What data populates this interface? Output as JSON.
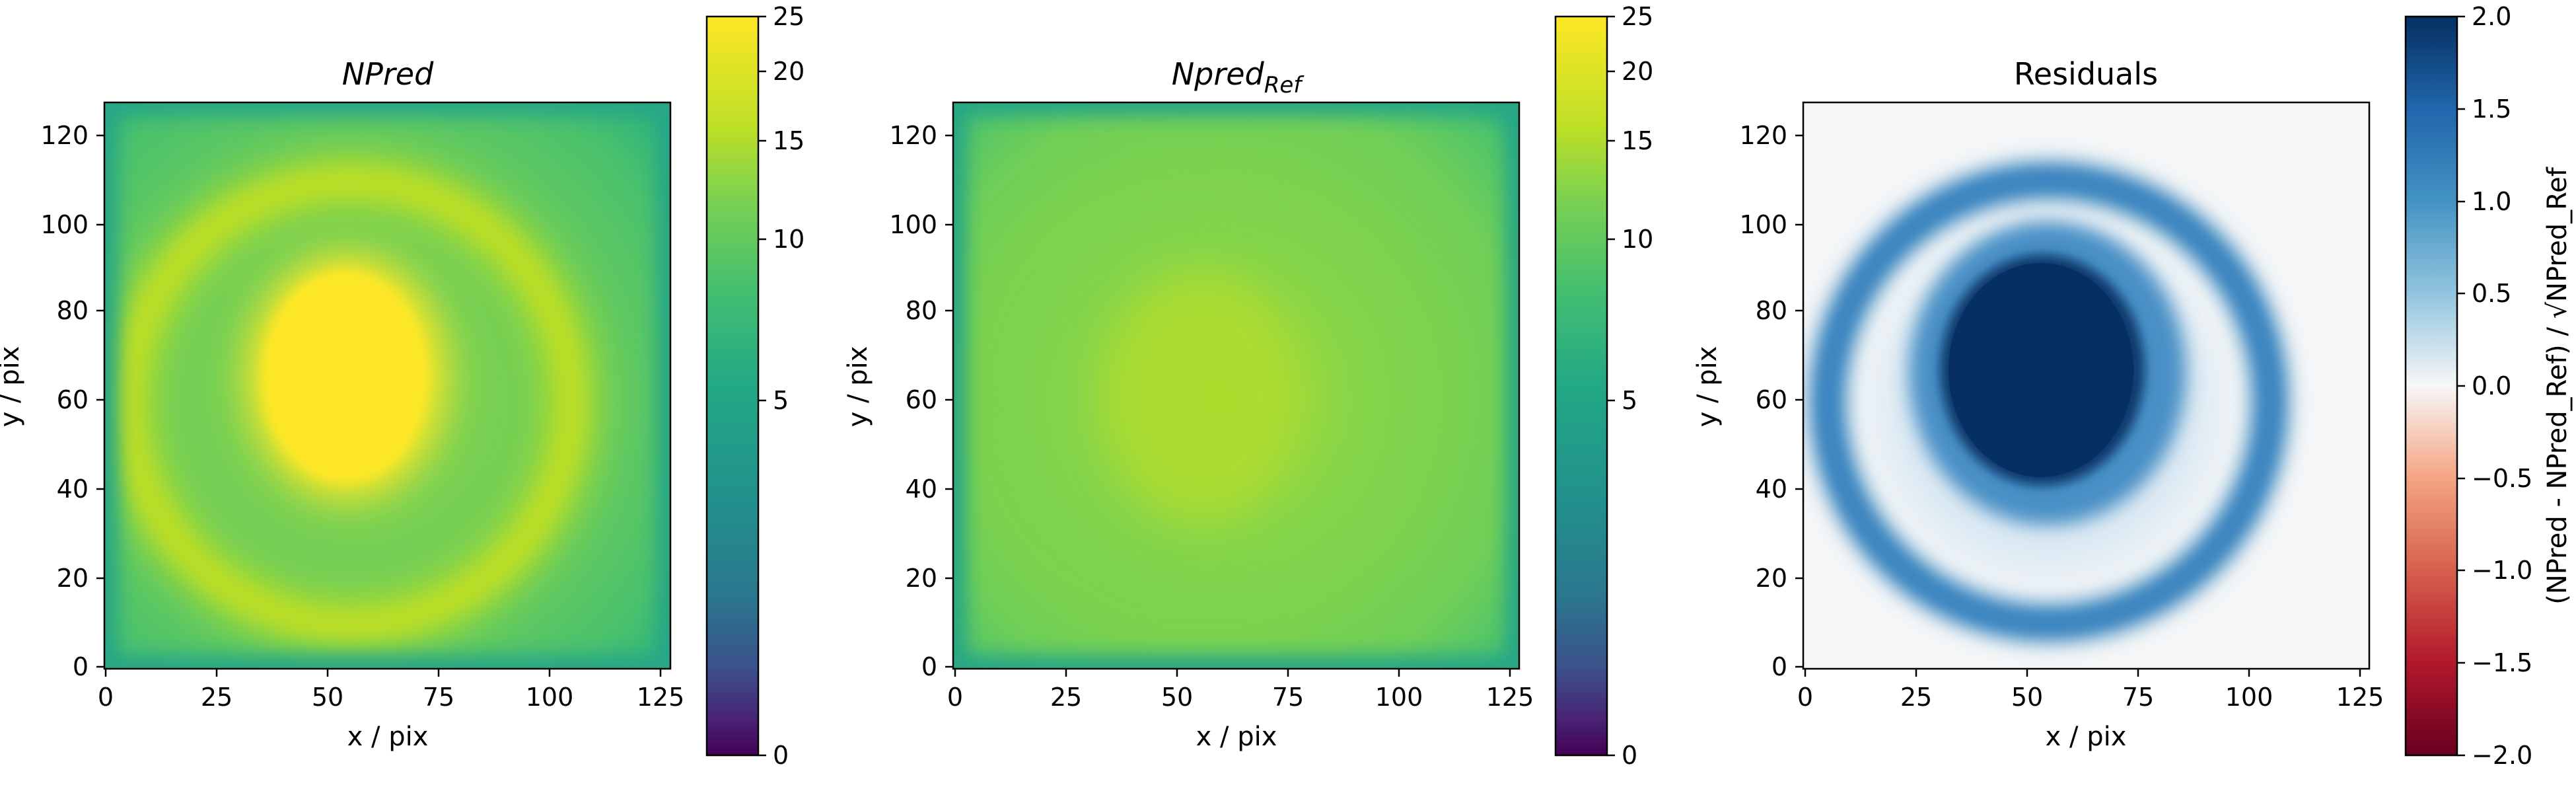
{
  "chart_data": [
    {
      "type": "heatmap",
      "title": "NPred",
      "xlabel": "x / pix",
      "ylabel": "y / pix",
      "xlim": [
        0,
        127
      ],
      "ylim": [
        0,
        127
      ],
      "xticks": [
        "0",
        "25",
        "50",
        "75",
        "100",
        "125"
      ],
      "yticks": [
        "0",
        "20",
        "40",
        "60",
        "80",
        "100",
        "120"
      ],
      "colormap": "viridis",
      "colorbar": {
        "label": "",
        "range": [
          0,
          25
        ],
        "scale": "sqrt",
        "ticks": [
          "0",
          "5",
          "10",
          "15",
          "20",
          "25"
        ]
      },
      "features": [
        {
          "shape": "blob",
          "center": [
            55,
            65
          ],
          "value": 25
        },
        {
          "shape": "ring",
          "center": [
            55,
            60
          ],
          "radius": 47,
          "value": 17
        },
        {
          "shape": "background",
          "value": 11
        }
      ]
    },
    {
      "type": "heatmap",
      "title": "Npred_Ref",
      "title_main": "Npred",
      "title_sub": "Ref",
      "xlabel": "x / pix",
      "ylabel": "y / pix",
      "xlim": [
        0,
        127
      ],
      "ylim": [
        0,
        127
      ],
      "xticks": [
        "0",
        "25",
        "50",
        "75",
        "100",
        "125"
      ],
      "yticks": [
        "0",
        "20",
        "40",
        "60",
        "80",
        "100",
        "120"
      ],
      "colormap": "viridis",
      "colorbar": {
        "label": "",
        "range": [
          0,
          25
        ],
        "scale": "sqrt",
        "ticks": [
          "0",
          "5",
          "10",
          "15",
          "20",
          "25"
        ]
      },
      "features": [
        {
          "shape": "blob",
          "center": [
            56,
            64
          ],
          "value": 15
        },
        {
          "shape": "ring",
          "center": [
            55,
            60
          ],
          "radius": 47,
          "value": 13
        },
        {
          "shape": "background",
          "value": 12
        }
      ]
    },
    {
      "type": "heatmap",
      "title": "Residuals",
      "xlabel": "x / pix",
      "ylabel": "y / pix",
      "xlim": [
        0,
        127
      ],
      "ylim": [
        0,
        127
      ],
      "xticks": [
        "0",
        "25",
        "50",
        "75",
        "100",
        "125"
      ],
      "yticks": [
        "0",
        "20",
        "40",
        "60",
        "80",
        "100",
        "120"
      ],
      "colormap": "RdBu",
      "colorbar": {
        "label": "(NPred - NPred_Ref) / √NPred_Ref",
        "range": [
          -2.0,
          2.0
        ],
        "scale": "linear",
        "ticks": [
          "2.0",
          "1.5",
          "1.0",
          "0.5",
          "0.0",
          "−0.5",
          "−1.0",
          "−1.5",
          "−2.0"
        ]
      },
      "features": [
        {
          "shape": "blob",
          "center": [
            54,
            63
          ],
          "value": 2.0
        },
        {
          "shape": "ring",
          "center": [
            55,
            60
          ],
          "radius": 47,
          "value": 1.2
        },
        {
          "shape": "background",
          "value": 0.0
        }
      ]
    }
  ],
  "colors": {
    "viridis_top": "#fde725",
    "viridis_mid": "#21918c",
    "viridis_bottom": "#440154",
    "rdbu_top": "#053061",
    "rdbu_mid": "#f7f7f7",
    "rdbu_bottom": "#67001f"
  }
}
